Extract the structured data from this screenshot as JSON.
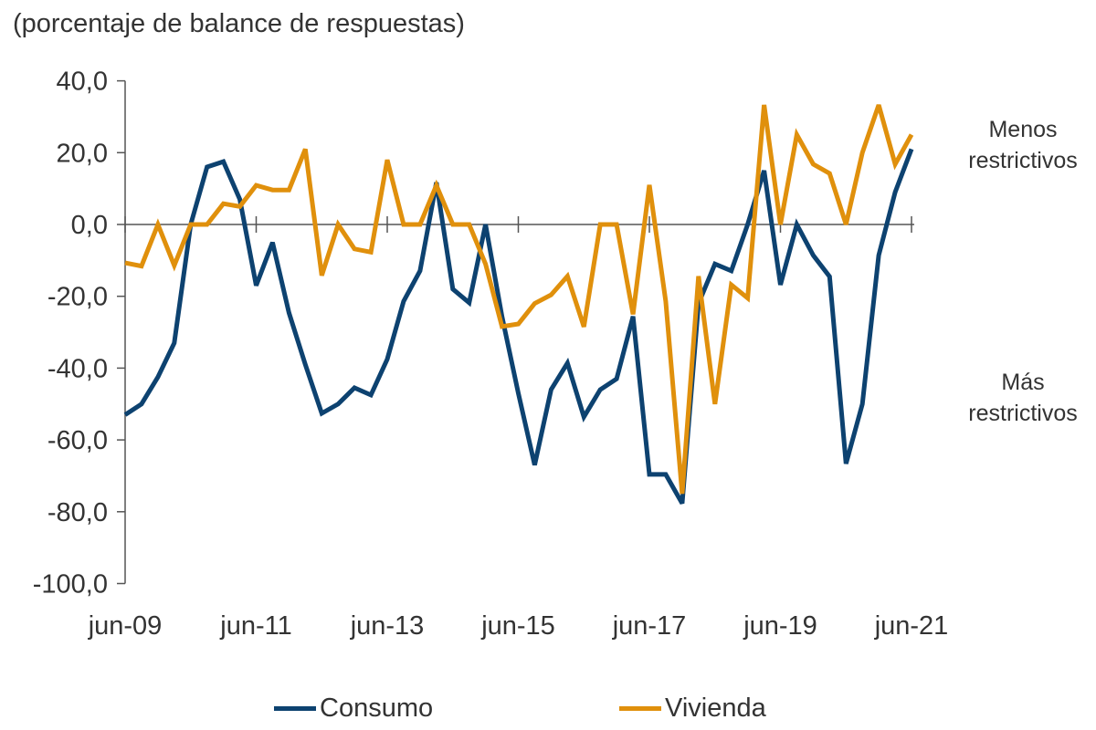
{
  "chart_data": {
    "type": "line",
    "title": "(porcentaje de balance de respuestas)",
    "xlabel": "",
    "ylabel": "",
    "ylim": [
      -100,
      40
    ],
    "yticks": [
      "40,0",
      "20,0",
      "0,0",
      "-20,0",
      "-40,0",
      "-60,0",
      "-80,0",
      "-100,0"
    ],
    "ytick_values": [
      40,
      20,
      0,
      -20,
      -40,
      -60,
      -80,
      -100
    ],
    "xticks": [
      "jun-09",
      "jun-11",
      "jun-13",
      "jun-15",
      "jun-17",
      "jun-19",
      "jun-21"
    ],
    "categories": [
      "jun-09",
      "sep-09",
      "dic-09",
      "mar-10",
      "jun-10",
      "sep-10",
      "dic-10",
      "mar-11",
      "jun-11",
      "sep-11",
      "dic-11",
      "mar-12",
      "jun-12",
      "sep-12",
      "dic-12",
      "mar-13",
      "jun-13",
      "sep-13",
      "dic-13",
      "mar-14",
      "jun-14",
      "sep-14",
      "dic-14",
      "mar-15",
      "jun-15",
      "sep-15",
      "dic-15",
      "mar-16",
      "jun-16",
      "sep-16",
      "dic-16",
      "mar-17",
      "jun-17",
      "sep-17",
      "dic-17",
      "mar-18",
      "jun-18",
      "sep-18",
      "dic-18",
      "mar-19",
      "jun-19",
      "sep-19",
      "dic-19",
      "mar-20",
      "jun-20",
      "sep-20",
      "dic-20",
      "mar-21",
      "jun-21"
    ],
    "grid": false,
    "legend": "bottom",
    "series": [
      {
        "name": "Consumo",
        "color": "#0d4270",
        "values": [
          -53,
          -50,
          -42.5,
          -33,
          0,
          16,
          17.5,
          7,
          -17,
          -5,
          -24.6,
          -39,
          -52.6,
          -50,
          -45.5,
          -47.5,
          -37.5,
          -21.4,
          -12.9,
          11.7,
          -18,
          -21.8,
          0,
          -25.6,
          -47,
          -67,
          -46,
          -38.6,
          -53.6,
          -46,
          -43,
          -25.6,
          -69.6,
          -69.6,
          -77.7,
          -22,
          -11,
          -12.9,
          0,
          15,
          -16.8,
          0,
          -8.6,
          -14.5,
          -66.6,
          -50,
          -8.6,
          9,
          21
        ]
      },
      {
        "name": "Vivienda",
        "color": "#e0900c",
        "values": [
          -10.7,
          -11.6,
          0,
          -11.4,
          0,
          0,
          5.8,
          5,
          10.9,
          9.6,
          9.6,
          21,
          -14.2,
          0,
          -6.8,
          -7.7,
          18,
          0,
          0,
          10.9,
          0,
          0,
          -11,
          -28.4,
          -27.7,
          -22,
          -19.6,
          -14.4,
          -28.5,
          0,
          0,
          -25,
          11,
          -21.4,
          -75,
          -14.4,
          -50,
          -16.8,
          -20.5,
          33.3,
          0,
          25,
          16.8,
          14.2,
          0,
          20,
          33.3,
          16.8,
          25
        ]
      }
    ],
    "annotations": {
      "upper": [
        "Menos",
        "restrictivos"
      ],
      "lower": [
        "Más",
        "restrictivos"
      ]
    }
  }
}
